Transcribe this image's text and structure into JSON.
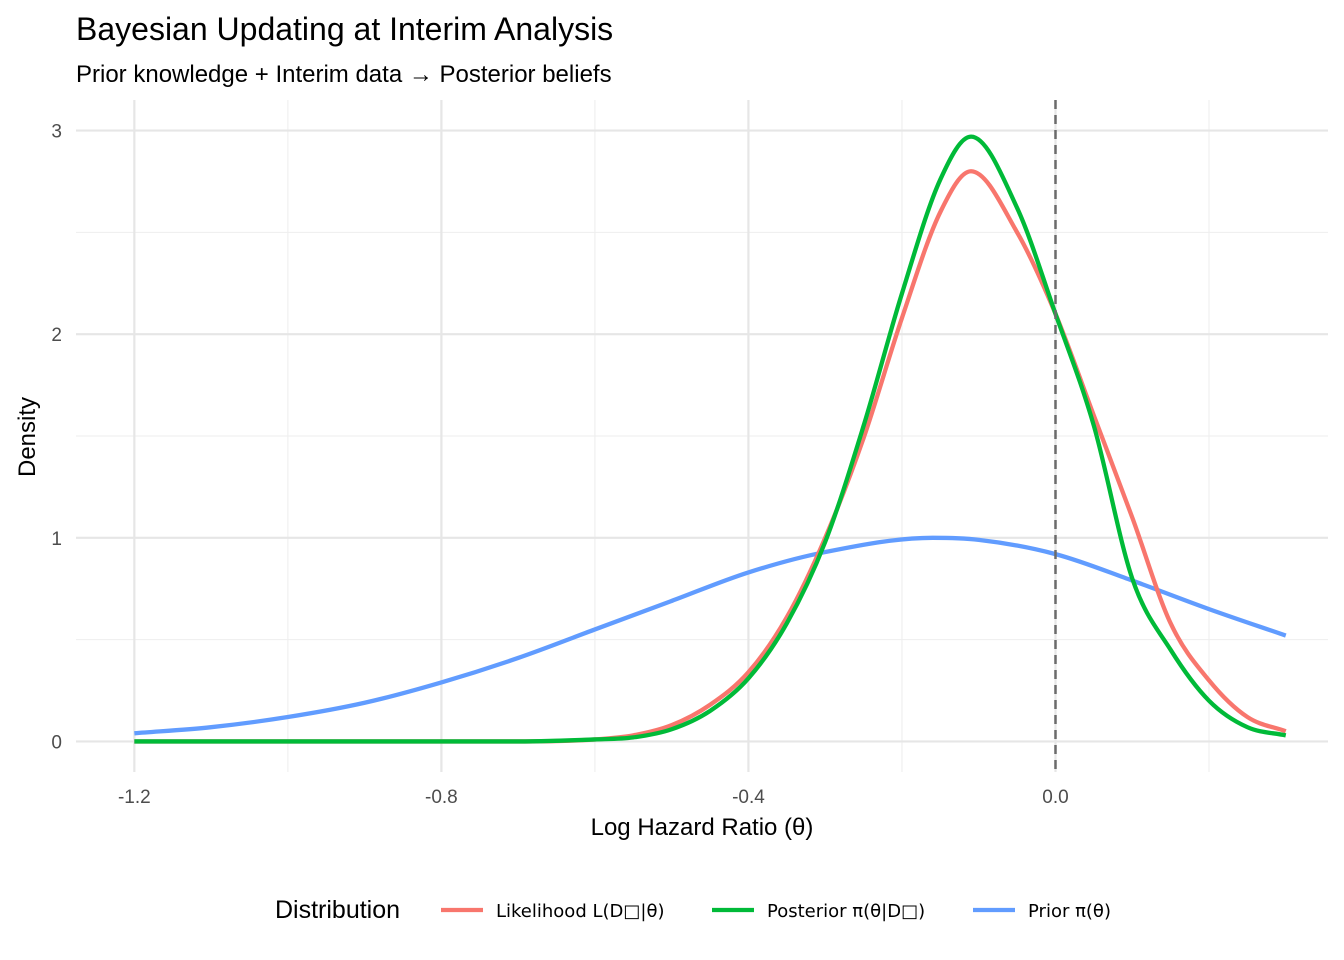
{
  "chart_data": {
    "type": "line",
    "title": "Bayesian Updating at Interim Analysis",
    "subtitle": "Prior knowledge + Interim data → Posterior beliefs",
    "xlabel": "Log Hazard Ratio (θ)",
    "ylabel": "Density",
    "xlim": [
      -1.2,
      0.3
    ],
    "ylim": [
      0,
      3
    ],
    "x_ticks": [
      -1.2,
      -0.8,
      -0.4,
      0.0
    ],
    "x_tick_labels": [
      "-1.2",
      "-0.8",
      "-0.4",
      "0.0"
    ],
    "y_ticks": [
      0,
      1,
      2,
      3
    ],
    "y_tick_labels": [
      "0",
      "1",
      "2",
      "3"
    ],
    "grid": true,
    "reference_line": {
      "x": 0.0,
      "style": "dashed",
      "color": "#6b6b6b"
    },
    "legend": {
      "title": "Distribution",
      "position": "bottom"
    },
    "series": [
      {
        "name": "Likelihood L(D□|θ)",
        "color": "#F8766D",
        "x": [
          -1.2,
          -0.7,
          -0.6,
          -0.55,
          -0.5,
          -0.45,
          -0.4,
          -0.35,
          -0.3,
          -0.25,
          -0.2,
          -0.15,
          -0.11,
          -0.05,
          0.0,
          0.05,
          0.1,
          0.15,
          0.2,
          0.25,
          0.3
        ],
        "y": [
          0.0,
          0.0,
          0.01,
          0.03,
          0.08,
          0.18,
          0.34,
          0.61,
          1.0,
          1.49,
          2.08,
          2.6,
          2.8,
          2.5,
          2.1,
          1.6,
          1.1,
          0.58,
          0.3,
          0.12,
          0.05
        ]
      },
      {
        "name": "Posterior π(θ|D□)",
        "color": "#00BA38",
        "x": [
          -1.2,
          -0.7,
          -0.6,
          -0.55,
          -0.5,
          -0.45,
          -0.4,
          -0.35,
          -0.3,
          -0.25,
          -0.2,
          -0.15,
          -0.11,
          -0.05,
          0.0,
          0.05,
          0.1,
          0.15,
          0.2,
          0.25,
          0.3
        ],
        "y": [
          0.0,
          0.0,
          0.01,
          0.02,
          0.06,
          0.15,
          0.31,
          0.58,
          0.98,
          1.55,
          2.2,
          2.76,
          2.97,
          2.62,
          2.1,
          1.55,
          0.8,
          0.45,
          0.2,
          0.07,
          0.03
        ]
      },
      {
        "name": "Prior π(θ)",
        "color": "#619CFF",
        "x": [
          -1.2,
          -1.1,
          -1.0,
          -0.9,
          -0.8,
          -0.7,
          -0.6,
          -0.5,
          -0.4,
          -0.3,
          -0.16,
          -0.1,
          0.0,
          0.1,
          0.2,
          0.3
        ],
        "y": [
          0.04,
          0.07,
          0.12,
          0.19,
          0.29,
          0.41,
          0.55,
          0.69,
          0.83,
          0.93,
          1.0,
          0.99,
          0.92,
          0.79,
          0.65,
          0.52
        ]
      }
    ]
  }
}
